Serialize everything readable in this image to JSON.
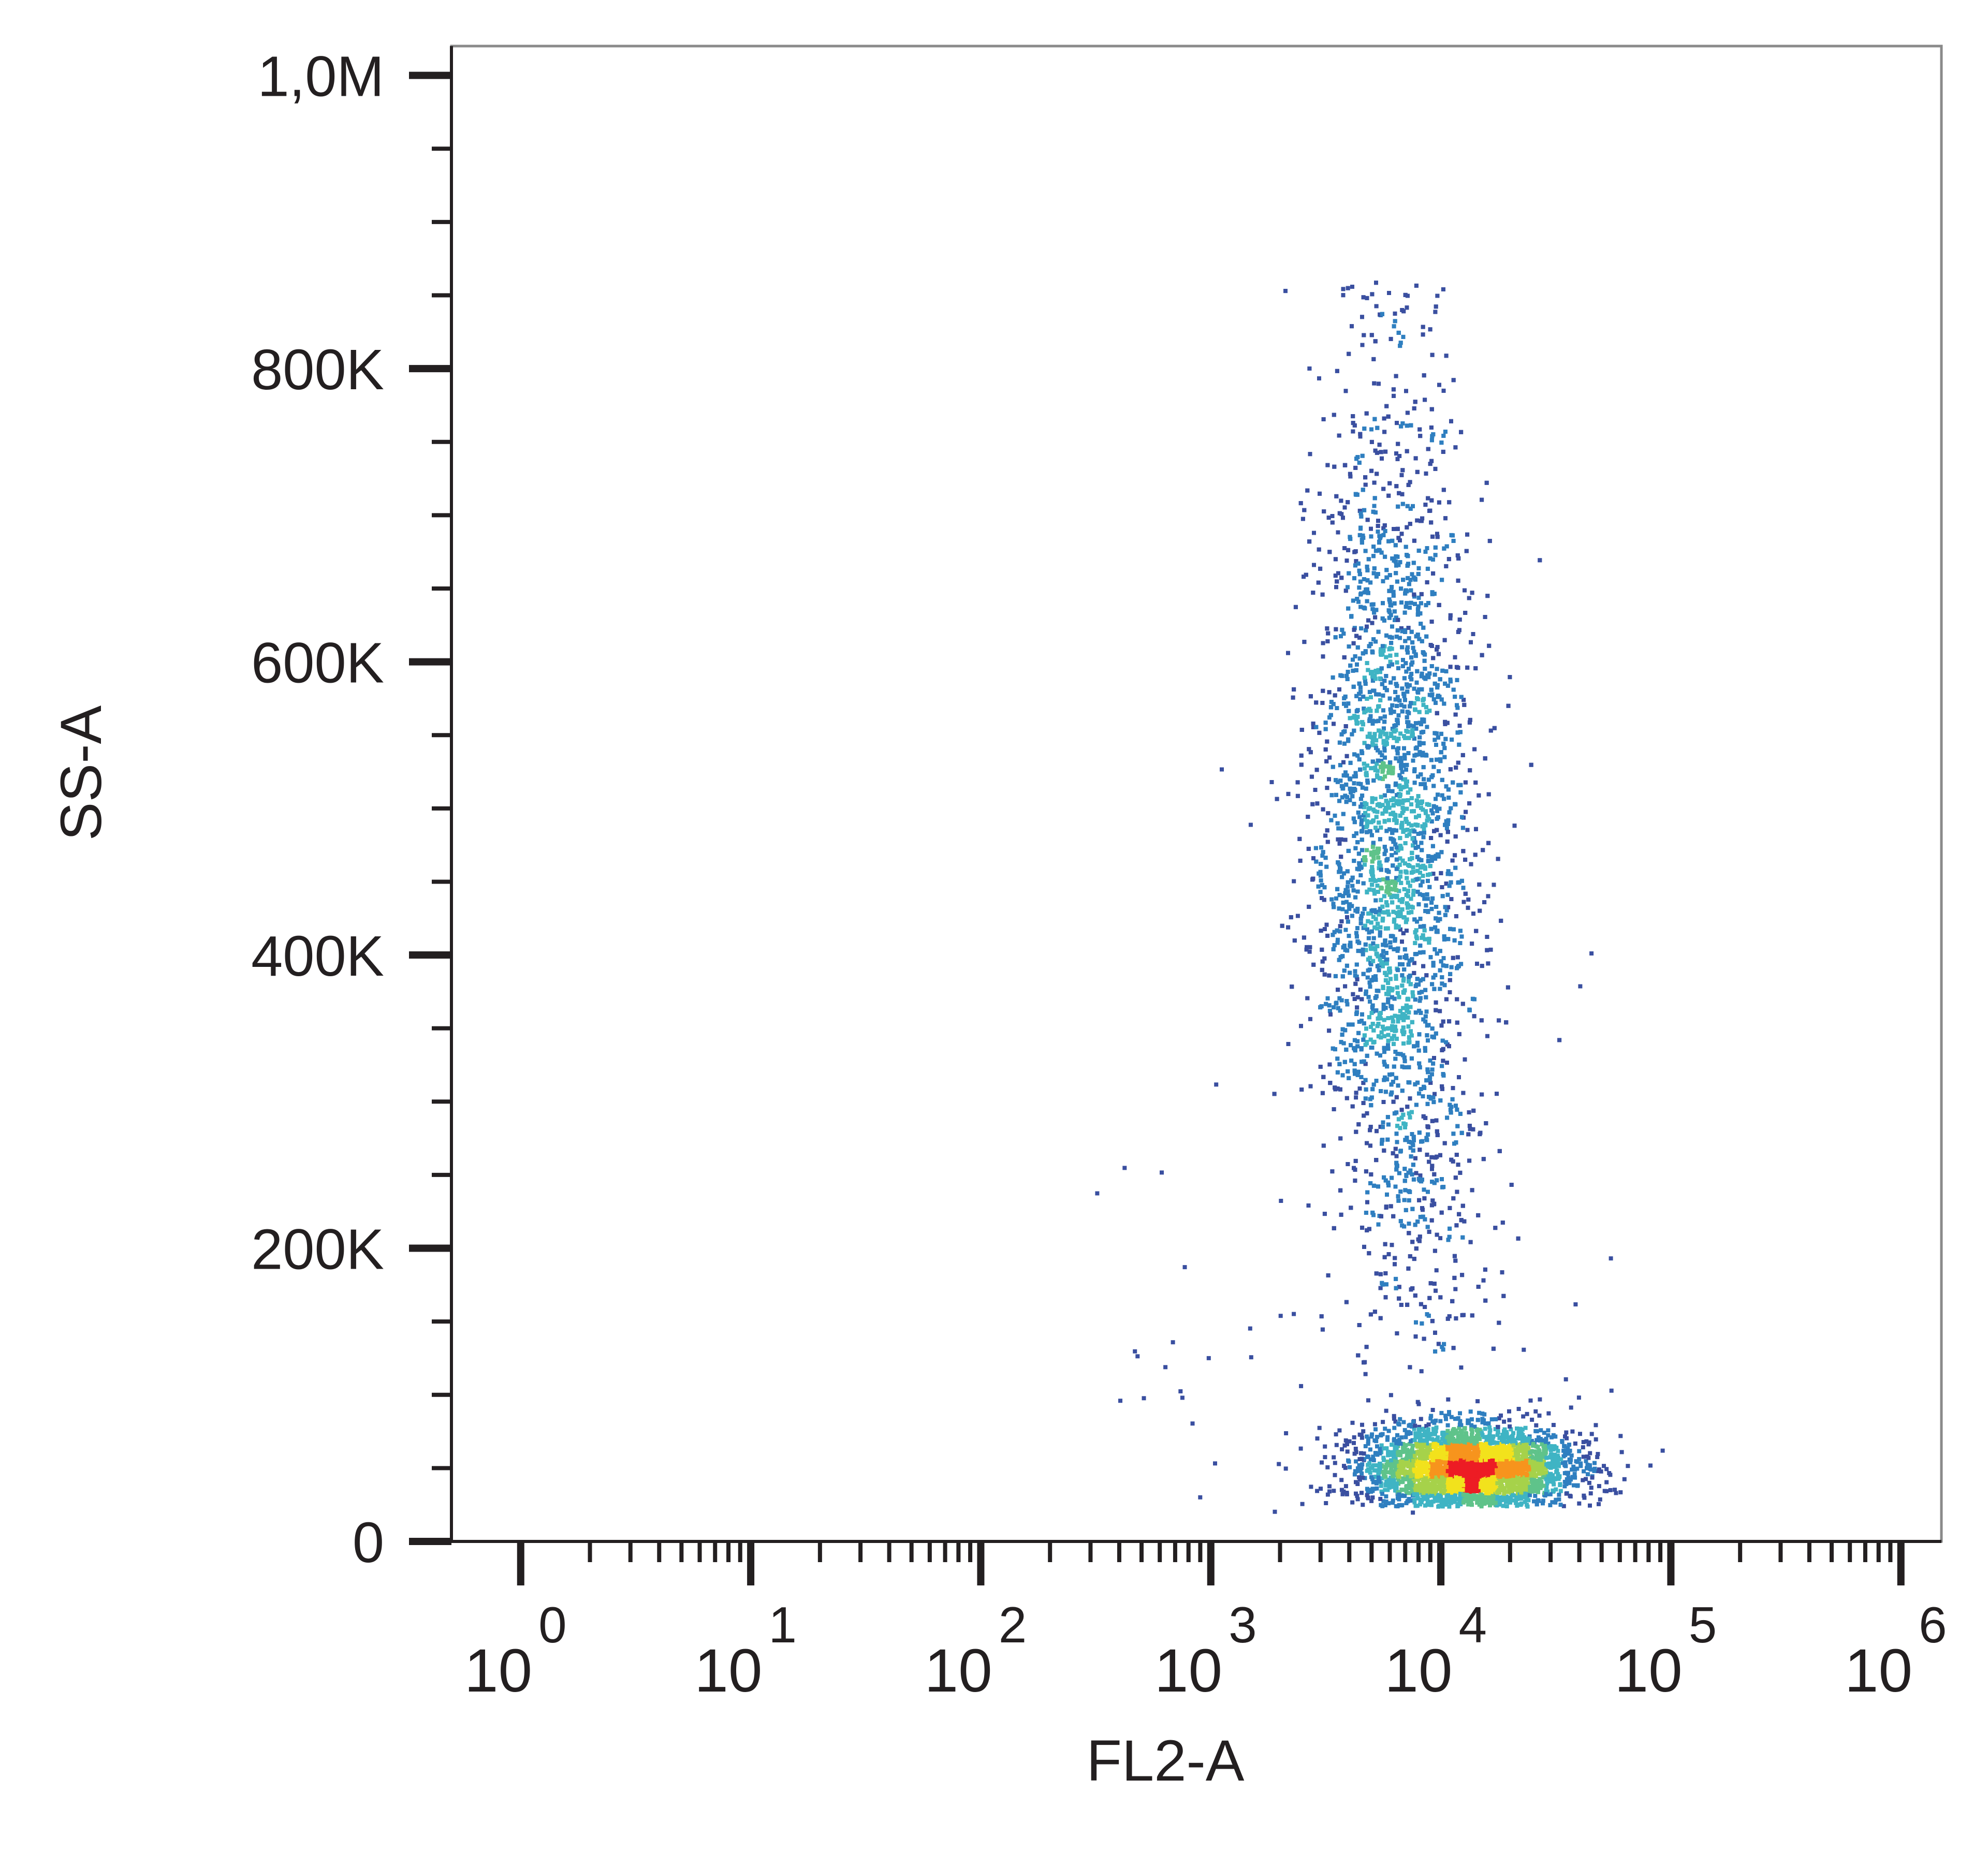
{
  "chart_data": {
    "type": "scatter",
    "title": "",
    "xlabel": "FL2-A",
    "ylabel": "SS-A",
    "x_scale": "log",
    "x_range": [
      0.5,
      1500000
    ],
    "y_range": [
      0,
      1020000
    ],
    "x_tick_labels": [
      {
        "value": 1,
        "base": "10",
        "exp": "0"
      },
      {
        "value": 10,
        "base": "10",
        "exp": "1"
      },
      {
        "value": 100,
        "base": "10",
        "exp": "2"
      },
      {
        "value": 1000,
        "base": "10",
        "exp": "3"
      },
      {
        "value": 10000,
        "base": "10",
        "exp": "4"
      },
      {
        "value": 100000,
        "base": "10",
        "exp": "5"
      },
      {
        "value": 1000000,
        "base": "10",
        "exp": "6"
      }
    ],
    "y_tick_labels": [
      {
        "value": 0,
        "label": "0"
      },
      {
        "value": 200000,
        "label": "200K"
      },
      {
        "value": 400000,
        "label": "400K"
      },
      {
        "value": 600000,
        "label": "600K"
      },
      {
        "value": 800000,
        "label": "800K"
      },
      {
        "value": 1000000,
        "label": "1,0M"
      }
    ],
    "grid": false,
    "legend": "none",
    "colormap": [
      "#3a4fa0",
      "#2f7fc0",
      "#3fb4c4",
      "#5fc38a",
      "#a6d24a",
      "#f2e21c",
      "#f7941d",
      "#ed1c24"
    ],
    "populations": [
      {
        "name": "",
        "x_center": 13000,
        "y_center": 52000,
        "x_log_sd": 0.22,
        "y_sd": 14000,
        "weight": 0.38
      },
      {
        "name": "",
        "x_center": 6000,
        "y_center": 480000,
        "x_log_sd": 0.17,
        "y_sd": 150000,
        "weight": 0.62
      }
    ]
  }
}
